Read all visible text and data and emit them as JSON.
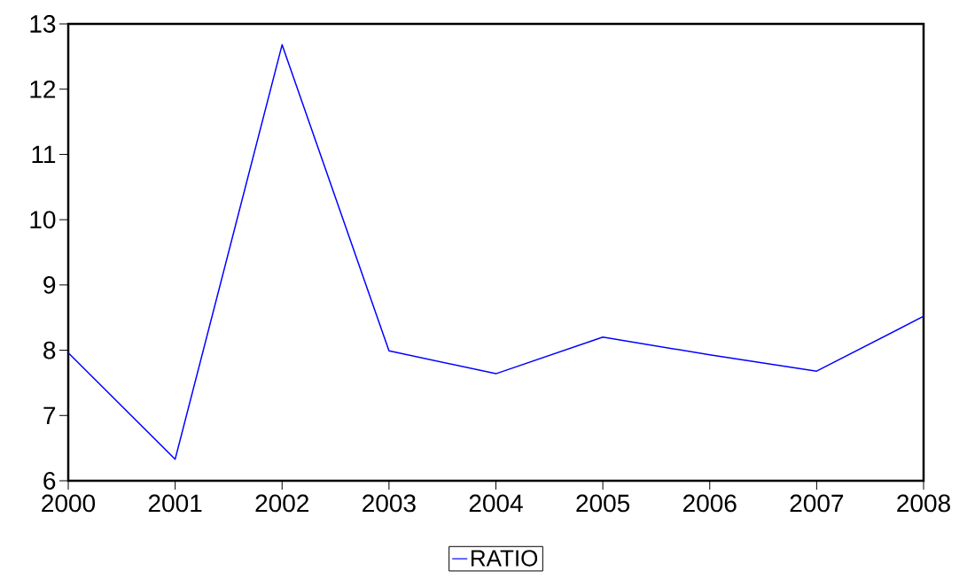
{
  "chart_data": {
    "type": "line",
    "x": [
      2000,
      2001,
      2002,
      2003,
      2004,
      2005,
      2006,
      2007,
      2008
    ],
    "series": [
      {
        "name": "RATIO",
        "color": "#0000ff",
        "values": [
          7.96,
          6.33,
          12.68,
          7.99,
          7.64,
          8.2,
          7.93,
          7.68,
          8.52
        ]
      }
    ],
    "xlim": [
      2000,
      2008
    ],
    "xticks": [
      2000,
      2001,
      2002,
      2003,
      2004,
      2005,
      2006,
      2007,
      2008
    ],
    "ylim": [
      6,
      13
    ],
    "yticks": [
      6,
      7,
      8,
      9,
      10,
      11,
      12,
      13
    ],
    "grid": false,
    "legend": "bottom",
    "marker": "none",
    "line_style": "solid"
  }
}
